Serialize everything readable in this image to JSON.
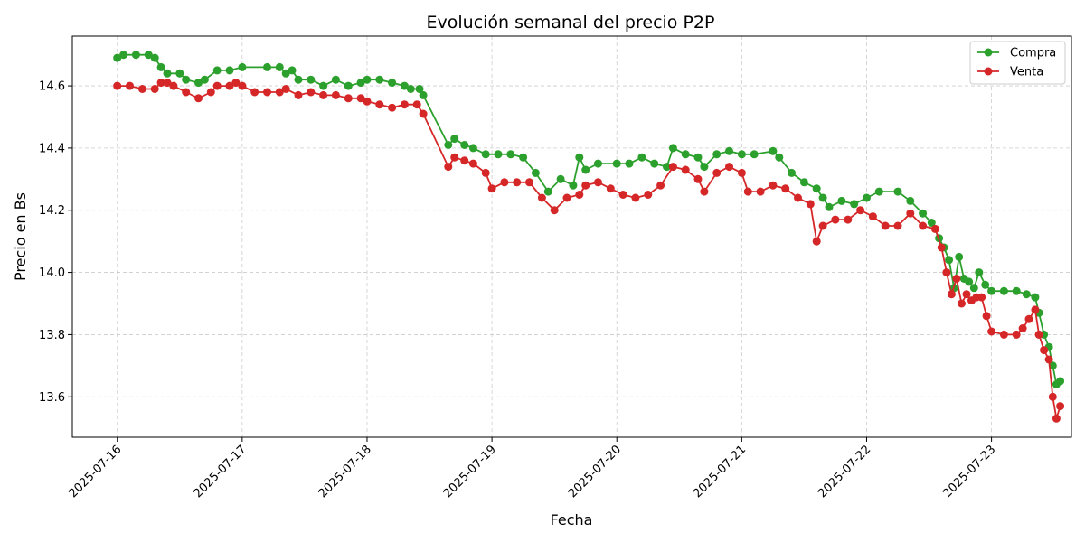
{
  "chart_data": {
    "type": "line",
    "title": "Evolución semanal del precio P2P",
    "xlabel": "Fecha",
    "ylabel": "Precio en Bs",
    "x_range": [
      -0.36,
      7.64
    ],
    "ylim": [
      13.47,
      14.76
    ],
    "x_ticks": [
      {
        "pos": 0,
        "label": "2025-07-16"
      },
      {
        "pos": 1,
        "label": "2025-07-17"
      },
      {
        "pos": 2,
        "label": "2025-07-18"
      },
      {
        "pos": 3,
        "label": "2025-07-19"
      },
      {
        "pos": 4,
        "label": "2025-07-20"
      },
      {
        "pos": 5,
        "label": "2025-07-21"
      },
      {
        "pos": 6,
        "label": "2025-07-22"
      },
      {
        "pos": 7,
        "label": "2025-07-23"
      }
    ],
    "y_ticks": [
      13.6,
      13.8,
      14.0,
      14.2,
      14.4,
      14.6
    ],
    "y_tick_labels": [
      "13.6",
      "13.8",
      "14.0",
      "14.2",
      "14.4",
      "14.6"
    ],
    "grid": true,
    "legend_position": "top-right",
    "series": [
      {
        "name": "Compra",
        "color": "#2ca02c",
        "points": [
          [
            0.0,
            14.69
          ],
          [
            0.05,
            14.7
          ],
          [
            0.15,
            14.7
          ],
          [
            0.25,
            14.7
          ],
          [
            0.3,
            14.69
          ],
          [
            0.35,
            14.66
          ],
          [
            0.4,
            14.64
          ],
          [
            0.5,
            14.64
          ],
          [
            0.55,
            14.62
          ],
          [
            0.65,
            14.61
          ],
          [
            0.7,
            14.62
          ],
          [
            0.8,
            14.65
          ],
          [
            0.9,
            14.65
          ],
          [
            1.0,
            14.66
          ],
          [
            1.2,
            14.66
          ],
          [
            1.3,
            14.66
          ],
          [
            1.35,
            14.64
          ],
          [
            1.4,
            14.65
          ],
          [
            1.45,
            14.62
          ],
          [
            1.55,
            14.62
          ],
          [
            1.65,
            14.6
          ],
          [
            1.75,
            14.62
          ],
          [
            1.85,
            14.6
          ],
          [
            1.95,
            14.61
          ],
          [
            2.0,
            14.62
          ],
          [
            2.1,
            14.62
          ],
          [
            2.2,
            14.61
          ],
          [
            2.3,
            14.6
          ],
          [
            2.35,
            14.59
          ],
          [
            2.42,
            14.59
          ],
          [
            2.45,
            14.57
          ],
          [
            2.65,
            14.41
          ],
          [
            2.7,
            14.43
          ],
          [
            2.78,
            14.41
          ],
          [
            2.85,
            14.4
          ],
          [
            2.95,
            14.38
          ],
          [
            3.05,
            14.38
          ],
          [
            3.15,
            14.38
          ],
          [
            3.25,
            14.37
          ],
          [
            3.35,
            14.32
          ],
          [
            3.45,
            14.26
          ],
          [
            3.55,
            14.3
          ],
          [
            3.65,
            14.28
          ],
          [
            3.7,
            14.37
          ],
          [
            3.75,
            14.33
          ],
          [
            3.85,
            14.35
          ],
          [
            4.0,
            14.35
          ],
          [
            4.1,
            14.35
          ],
          [
            4.2,
            14.37
          ],
          [
            4.3,
            14.35
          ],
          [
            4.4,
            14.34
          ],
          [
            4.45,
            14.4
          ],
          [
            4.55,
            14.38
          ],
          [
            4.65,
            14.37
          ],
          [
            4.7,
            14.34
          ],
          [
            4.8,
            14.38
          ],
          [
            4.9,
            14.39
          ],
          [
            5.0,
            14.38
          ],
          [
            5.1,
            14.38
          ],
          [
            5.25,
            14.39
          ],
          [
            5.3,
            14.37
          ],
          [
            5.4,
            14.32
          ],
          [
            5.5,
            14.29
          ],
          [
            5.6,
            14.27
          ],
          [
            5.65,
            14.24
          ],
          [
            5.7,
            14.21
          ],
          [
            5.8,
            14.23
          ],
          [
            5.9,
            14.22
          ],
          [
            6.0,
            14.24
          ],
          [
            6.1,
            14.26
          ],
          [
            6.25,
            14.26
          ],
          [
            6.35,
            14.23
          ],
          [
            6.45,
            14.19
          ],
          [
            6.52,
            14.16
          ],
          [
            6.58,
            14.11
          ],
          [
            6.62,
            14.08
          ],
          [
            6.66,
            14.04
          ],
          [
            6.7,
            13.95
          ],
          [
            6.74,
            14.05
          ],
          [
            6.78,
            13.98
          ],
          [
            6.82,
            13.97
          ],
          [
            6.86,
            13.95
          ],
          [
            6.9,
            14.0
          ],
          [
            6.95,
            13.96
          ],
          [
            7.0,
            13.94
          ],
          [
            7.1,
            13.94
          ],
          [
            7.2,
            13.94
          ],
          [
            7.28,
            13.93
          ],
          [
            7.35,
            13.92
          ],
          [
            7.38,
            13.87
          ],
          [
            7.42,
            13.8
          ],
          [
            7.46,
            13.76
          ],
          [
            7.49,
            13.7
          ],
          [
            7.52,
            13.64
          ],
          [
            7.55,
            13.65
          ]
        ]
      },
      {
        "name": "Venta",
        "color": "#d62728",
        "points": [
          [
            0.0,
            14.6
          ],
          [
            0.1,
            14.6
          ],
          [
            0.2,
            14.59
          ],
          [
            0.3,
            14.59
          ],
          [
            0.35,
            14.61
          ],
          [
            0.4,
            14.61
          ],
          [
            0.45,
            14.6
          ],
          [
            0.55,
            14.58
          ],
          [
            0.65,
            14.56
          ],
          [
            0.75,
            14.58
          ],
          [
            0.8,
            14.6
          ],
          [
            0.9,
            14.6
          ],
          [
            0.95,
            14.61
          ],
          [
            1.0,
            14.6
          ],
          [
            1.1,
            14.58
          ],
          [
            1.2,
            14.58
          ],
          [
            1.3,
            14.58
          ],
          [
            1.35,
            14.59
          ],
          [
            1.45,
            14.57
          ],
          [
            1.55,
            14.58
          ],
          [
            1.65,
            14.57
          ],
          [
            1.75,
            14.57
          ],
          [
            1.85,
            14.56
          ],
          [
            1.95,
            14.56
          ],
          [
            2.0,
            14.55
          ],
          [
            2.1,
            14.54
          ],
          [
            2.2,
            14.53
          ],
          [
            2.3,
            14.54
          ],
          [
            2.4,
            14.54
          ],
          [
            2.45,
            14.51
          ],
          [
            2.65,
            14.34
          ],
          [
            2.7,
            14.37
          ],
          [
            2.78,
            14.36
          ],
          [
            2.85,
            14.35
          ],
          [
            2.95,
            14.32
          ],
          [
            3.0,
            14.27
          ],
          [
            3.1,
            14.29
          ],
          [
            3.2,
            14.29
          ],
          [
            3.3,
            14.29
          ],
          [
            3.4,
            14.24
          ],
          [
            3.5,
            14.2
          ],
          [
            3.6,
            14.24
          ],
          [
            3.7,
            14.25
          ],
          [
            3.75,
            14.28
          ],
          [
            3.85,
            14.29
          ],
          [
            3.95,
            14.27
          ],
          [
            4.05,
            14.25
          ],
          [
            4.15,
            14.24
          ],
          [
            4.25,
            14.25
          ],
          [
            4.35,
            14.28
          ],
          [
            4.45,
            14.34
          ],
          [
            4.55,
            14.33
          ],
          [
            4.65,
            14.3
          ],
          [
            4.7,
            14.26
          ],
          [
            4.8,
            14.32
          ],
          [
            4.9,
            14.34
          ],
          [
            5.0,
            14.32
          ],
          [
            5.05,
            14.26
          ],
          [
            5.15,
            14.26
          ],
          [
            5.25,
            14.28
          ],
          [
            5.35,
            14.27
          ],
          [
            5.45,
            14.24
          ],
          [
            5.55,
            14.22
          ],
          [
            5.6,
            14.1
          ],
          [
            5.65,
            14.15
          ],
          [
            5.75,
            14.17
          ],
          [
            5.85,
            14.17
          ],
          [
            5.95,
            14.2
          ],
          [
            6.05,
            14.18
          ],
          [
            6.15,
            14.15
          ],
          [
            6.25,
            14.15
          ],
          [
            6.35,
            14.19
          ],
          [
            6.45,
            14.15
          ],
          [
            6.55,
            14.14
          ],
          [
            6.6,
            14.08
          ],
          [
            6.64,
            14.0
          ],
          [
            6.68,
            13.93
          ],
          [
            6.72,
            13.98
          ],
          [
            6.76,
            13.9
          ],
          [
            6.8,
            13.93
          ],
          [
            6.84,
            13.91
          ],
          [
            6.88,
            13.92
          ],
          [
            6.92,
            13.92
          ],
          [
            6.96,
            13.86
          ],
          [
            7.0,
            13.81
          ],
          [
            7.1,
            13.8
          ],
          [
            7.2,
            13.8
          ],
          [
            7.25,
            13.82
          ],
          [
            7.3,
            13.85
          ],
          [
            7.35,
            13.88
          ],
          [
            7.38,
            13.8
          ],
          [
            7.42,
            13.75
          ],
          [
            7.46,
            13.72
          ],
          [
            7.49,
            13.6
          ],
          [
            7.52,
            13.53
          ],
          [
            7.55,
            13.57
          ]
        ]
      }
    ]
  }
}
